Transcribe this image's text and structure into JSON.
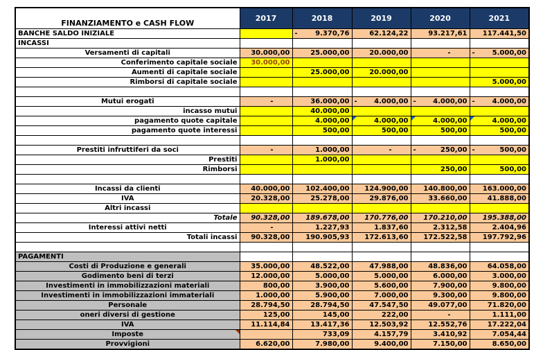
{
  "palette": {
    "header_bg": "#1B3A68",
    "header_text": "#FFFFFF",
    "computed_cell": "#FBC999",
    "input_cell": "#FFFF00",
    "section_label_bg": "#BFBFBF",
    "grid_line": "#000000",
    "special_value_color": "#974706",
    "formula_marker": "#1565C0",
    "comment_marker": "#993300"
  },
  "table": {
    "title": "FINANZIAMENTO e CASH FLOW",
    "years": [
      "2017",
      "2018",
      "2019",
      "2020",
      "2021"
    ],
    "rows": [
      {
        "label": "BANCHE SALDO INIZIALE",
        "type": "banche",
        "values": [
          "",
          "- 9.370,76",
          "62.124,22",
          "93.217,61",
          "117.441,50"
        ]
      },
      {
        "label": "INCASSI",
        "type": "section",
        "values": [
          "",
          "",
          "",
          "",
          ""
        ]
      },
      {
        "label": "Versamenti di capitali",
        "type": "main",
        "values": [
          "30.000,00",
          "25.000,00",
          "20.000,00",
          "-",
          "- 5.000,00"
        ]
      },
      {
        "label": "Conferimento capitale sociale",
        "type": "sub",
        "value_color": "#974706",
        "values": [
          "30.000,00",
          "",
          "",
          "",
          ""
        ]
      },
      {
        "label": "Aumenti di capitale sociale",
        "type": "sub",
        "values": [
          "",
          "25.000,00",
          "20.000,00",
          "",
          ""
        ]
      },
      {
        "label": "Rimborsi di capitale sociale",
        "type": "sub",
        "values": [
          "",
          "",
          "",
          "",
          "5.000,00"
        ]
      },
      {
        "label": "",
        "type": "spacer",
        "values": [
          "",
          "",
          "",
          "",
          ""
        ]
      },
      {
        "label": "Mutui erogati",
        "type": "main",
        "values": [
          "-",
          "36.000,00",
          "- 4.000,00",
          "- 4.000,00",
          "- 4.000,00"
        ]
      },
      {
        "label": "incasso mutui",
        "type": "sub",
        "values": [
          "",
          "40.000,00",
          "",
          "",
          ""
        ]
      },
      {
        "label": "pagamento quote capitale",
        "type": "sub",
        "corners": [
          "",
          "",
          "blue",
          "blue",
          "blue"
        ],
        "values": [
          "",
          "4.000,00",
          "4.000,00",
          "4.000,00",
          "4.000,00"
        ]
      },
      {
        "label": "pagamento quote interessi",
        "type": "sub",
        "values": [
          "",
          "500,00",
          "500,00",
          "500,00",
          "500,00"
        ]
      },
      {
        "label": "",
        "type": "spacer",
        "values": [
          "",
          "",
          "",
          "",
          ""
        ]
      },
      {
        "label": "Prestiti infruttiferi da soci",
        "type": "main",
        "values": [
          "-",
          "1.000,00",
          "-",
          "- 250,00",
          "- 500,00"
        ]
      },
      {
        "label": "Prestiti",
        "type": "sub",
        "values": [
          "",
          "1.000,00",
          "",
          "",
          ""
        ]
      },
      {
        "label": "Rimborsi",
        "type": "sub",
        "values": [
          "",
          "",
          "",
          "250,00",
          "500,00"
        ]
      },
      {
        "label": "",
        "type": "spacer",
        "values": [
          "",
          "",
          "",
          "",
          ""
        ]
      },
      {
        "label": "Incassi da clienti",
        "type": "main",
        "values": [
          "40.000,00",
          "102.400,00",
          "124.900,00",
          "140.800,00",
          "163.000,00"
        ]
      },
      {
        "label": "IVA",
        "type": "main",
        "values": [
          "20.328,00",
          "25.278,00",
          "29.876,00",
          "33.660,00",
          "41.888,00"
        ]
      },
      {
        "label": "Altri incassi",
        "type": "subc",
        "values": [
          "",
          "",
          "",
          "",
          ""
        ]
      },
      {
        "label": "Totale",
        "type": "total",
        "values": [
          "90.328,00",
          "189.678,00",
          "170.776,00",
          "170.210,00",
          "195.388,00"
        ]
      },
      {
        "label": "Interessi attivi netti",
        "type": "main",
        "values": [
          "-",
          "1.227,93",
          "1.837,60",
          "2.312,58",
          "2.404,96"
        ]
      },
      {
        "label": "Totali incassi",
        "type": "grandtotal",
        "values": [
          "90.328,00",
          "190.905,93",
          "172.613,60",
          "172.522,58",
          "197.792,96"
        ]
      },
      {
        "label": "",
        "type": "spacer",
        "values": [
          "",
          "",
          "",
          "",
          ""
        ]
      },
      {
        "label": "PAGAMENTI",
        "type": "pay-section",
        "values": [
          "",
          "",
          "",
          "",
          ""
        ]
      },
      {
        "label": "Costi di Produzione e generali",
        "type": "pay",
        "values": [
          "35.000,00",
          "48.522,00",
          "47.988,00",
          "48.836,00",
          "64.058,00"
        ]
      },
      {
        "label": "Godimento beni di terzi",
        "type": "pay",
        "values": [
          "12.000,00",
          "5.000,00",
          "5.000,00",
          "6.000,00",
          "3.000,00"
        ]
      },
      {
        "label": "Investimenti in immobilizzazioni materiali",
        "type": "pay",
        "values": [
          "800,00",
          "3.900,00",
          "5.600,00",
          "7.900,00",
          "9.800,00"
        ]
      },
      {
        "label": "Investimenti in immobilizzazioni immateriali",
        "type": "pay",
        "values": [
          "1.000,00",
          "5.900,00",
          "7.000,00",
          "9.300,00",
          "9.800,00"
        ]
      },
      {
        "label": "Personale",
        "type": "pay",
        "values": [
          "28.794,50",
          "28.794,50",
          "47.547,50",
          "49.077,00",
          "71.820,00"
        ]
      },
      {
        "label": "oneri diversi di gestione",
        "type": "pay",
        "values": [
          "125,00",
          "145,00",
          "222,00",
          "-",
          "1.111,00"
        ]
      },
      {
        "label": "IVA",
        "type": "pay",
        "values": [
          "11.114,84",
          "13.417,36",
          "12.503,92",
          "12.552,76",
          "17.222,04"
        ]
      },
      {
        "label": "Imposte",
        "type": "pay",
        "label_corner": "red",
        "values": [
          "",
          "733,09",
          "4.157,79",
          "3.410,92",
          "7.054,44"
        ]
      },
      {
        "label": "Provvigioni",
        "type": "pay",
        "values": [
          "6.620,00",
          "7.980,00",
          "9.400,00",
          "7.150,00",
          "8.650,00"
        ]
      }
    ]
  }
}
